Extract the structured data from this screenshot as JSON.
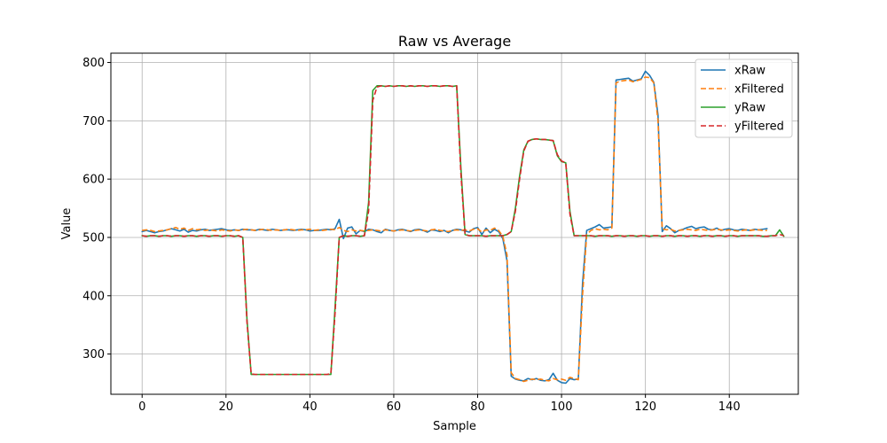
{
  "chart_data": {
    "type": "line",
    "title": "Raw vs Average",
    "xlabel": "Sample",
    "ylabel": "Value",
    "xlim": [
      -7.45,
      156.45
    ],
    "ylim": [
      231,
      816
    ],
    "xticks": [
      0,
      20,
      40,
      60,
      80,
      100,
      120,
      140
    ],
    "yticks": [
      300,
      400,
      500,
      600,
      700,
      800
    ],
    "grid": true,
    "legend_position": "top-right",
    "series": [
      {
        "name": "xRaw",
        "color": "#1f77b4",
        "dash": "solid",
        "values": [
          510,
          512,
          510,
          508,
          510,
          511,
          513,
          515,
          513,
          511,
          514,
          509,
          512,
          511,
          513,
          514,
          512,
          513,
          514,
          515,
          513,
          512,
          513,
          512,
          514,
          513,
          513,
          512,
          514,
          513,
          512,
          514,
          513,
          512,
          513,
          513,
          512,
          513,
          514,
          513,
          511,
          512,
          512,
          513,
          514,
          513,
          515,
          531,
          498,
          516,
          518,
          506,
          512,
          510,
          514,
          513,
          510,
          508,
          514,
          512,
          511,
          513,
          514,
          512,
          510,
          513,
          514,
          512,
          509,
          513,
          512,
          510,
          512,
          508,
          512,
          514,
          513,
          511,
          509,
          515,
          517,
          505,
          516,
          508,
          514,
          510,
          498,
          460,
          262,
          257,
          255,
          254,
          258,
          256,
          258,
          255,
          254,
          256,
          267,
          255,
          251,
          250,
          258,
          256,
          257,
          420,
          512,
          515,
          518,
          522,
          516,
          517,
          518,
          770,
          771,
          772,
          773,
          768,
          770,
          772,
          785,
          778,
          766,
          710,
          510,
          520,
          515,
          508,
          512,
          514,
          517,
          519,
          515,
          517,
          518,
          514,
          513,
          516,
          512,
          514,
          515,
          513,
          512,
          514,
          513,
          512,
          514,
          513,
          514,
          515
        ]
      },
      {
        "name": "xFiltered",
        "color": "#ff7f0e",
        "dash": "dashed",
        "values": [
          512,
          513,
          512,
          510,
          511,
          512,
          513,
          515,
          517,
          514,
          516,
          512,
          515,
          513,
          514,
          512,
          513,
          512,
          511,
          513,
          512,
          511,
          513,
          512,
          513,
          514,
          513,
          512,
          513,
          514,
          513,
          512,
          513,
          512,
          513,
          514,
          513,
          512,
          513,
          513,
          514,
          512,
          513,
          512,
          513,
          514,
          513,
          517,
          512,
          510,
          513,
          511,
          512,
          511,
          512,
          513,
          512,
          511,
          513,
          512,
          511,
          512,
          513,
          512,
          511,
          512,
          513,
          512,
          511,
          513,
          514,
          512,
          511,
          510,
          512,
          513,
          512,
          513,
          511,
          514,
          515,
          509,
          513,
          512,
          516,
          512,
          502,
          470,
          268,
          258,
          256,
          253,
          255,
          257,
          256,
          257,
          255,
          254,
          258,
          256,
          257,
          255,
          260,
          258,
          256,
          400,
          505,
          512,
          515,
          513,
          514,
          513,
          516,
          765,
          768,
          769,
          770,
          767,
          769,
          771,
          775,
          774,
          765,
          700,
          515,
          513,
          514,
          511,
          512,
          513,
          514,
          513,
          512,
          514,
          513,
          512,
          513,
          514,
          513,
          512,
          513,
          512,
          511,
          512,
          513,
          512,
          513,
          513,
          512,
          512
        ]
      },
      {
        "name": "yRaw",
        "color": "#2ca02c",
        "dash": "solid",
        "values": [
          503,
          502,
          503,
          503,
          502,
          503,
          503,
          502,
          503,
          503,
          502,
          503,
          503,
          502,
          503,
          503,
          502,
          503,
          503,
          502,
          503,
          503,
          502,
          503,
          500,
          360,
          265,
          265,
          265,
          265,
          265,
          265,
          265,
          265,
          265,
          265,
          265,
          265,
          265,
          265,
          265,
          265,
          265,
          265,
          265,
          265,
          380,
          500,
          503,
          502,
          503,
          503,
          502,
          503,
          560,
          752,
          760,
          760,
          759,
          760,
          759,
          760,
          760,
          759,
          760,
          759,
          760,
          760,
          759,
          760,
          760,
          759,
          760,
          760,
          759,
          760,
          620,
          505,
          503,
          503,
          503,
          503,
          502,
          503,
          503,
          503,
          503,
          505,
          510,
          550,
          605,
          650,
          665,
          668,
          669,
          668,
          668,
          667,
          666,
          640,
          630,
          628,
          545,
          503,
          503,
          503,
          503,
          503,
          502,
          503,
          503,
          503,
          502,
          503,
          503,
          502,
          503,
          503,
          502,
          503,
          503,
          502,
          503,
          503,
          502,
          503,
          503,
          502,
          503,
          503,
          502,
          503,
          503,
          502,
          503,
          503,
          502,
          503,
          503,
          502,
          503,
          503,
          502,
          503,
          503,
          503,
          503,
          503,
          502,
          502,
          503,
          503,
          513,
          502
        ]
      },
      {
        "name": "yFiltered",
        "color": "#d62728",
        "dash": "dashed",
        "values": [
          503,
          502,
          503,
          503,
          502,
          503,
          503,
          502,
          503,
          503,
          502,
          503,
          503,
          502,
          503,
          503,
          502,
          503,
          503,
          502,
          503,
          503,
          502,
          503,
          500,
          355,
          266,
          265,
          265,
          265,
          265,
          265,
          265,
          265,
          265,
          265,
          265,
          265,
          265,
          265,
          265,
          265,
          265,
          265,
          265,
          266,
          370,
          500,
          503,
          502,
          503,
          503,
          502,
          503,
          545,
          735,
          758,
          760,
          759,
          760,
          759,
          760,
          760,
          759,
          760,
          759,
          760,
          760,
          759,
          760,
          760,
          759,
          760,
          760,
          759,
          760,
          610,
          505,
          503,
          503,
          503,
          503,
          502,
          503,
          503,
          503,
          503,
          505,
          510,
          545,
          600,
          648,
          665,
          668,
          669,
          668,
          668,
          667,
          666,
          642,
          631,
          628,
          540,
          503,
          503,
          503,
          503,
          503,
          502,
          503,
          503,
          503,
          502,
          503,
          503,
          502,
          503,
          503,
          502,
          503,
          503,
          502,
          503,
          503,
          502,
          503,
          503,
          502,
          503,
          503,
          502,
          503,
          503,
          502,
          503,
          503,
          502,
          503,
          503,
          502,
          503,
          503,
          502,
          503,
          503,
          503,
          503,
          503,
          502,
          502,
          503,
          503,
          505,
          503
        ]
      }
    ]
  }
}
